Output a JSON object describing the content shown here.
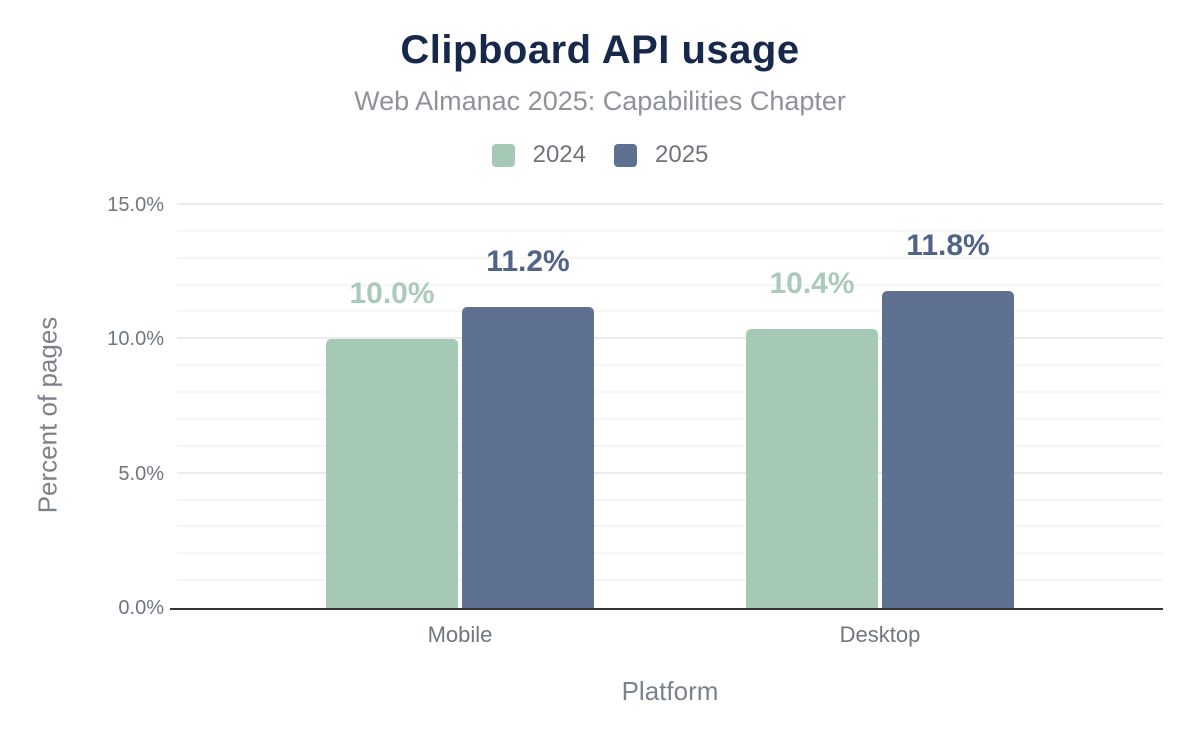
{
  "palette": {
    "background": "#ffffff",
    "title-color": "#16294b",
    "subtitle-color": "#8d9399",
    "legend-text": "#6f747c",
    "tick-text": "#70767e",
    "axis-title-text": "#7c828a",
    "grid-minor": "#f6f6f6",
    "grid-major": "#ebebeb",
    "baseline-color": "#323437"
  },
  "chart_data": {
    "type": "bar",
    "title": "Clipboard API usage",
    "subtitle": "Web Almanac 2025: Capabilities Chapter",
    "categories": [
      "Mobile",
      "Desktop"
    ],
    "series": [
      {
        "name": "2024",
        "values": [
          10.0,
          10.4
        ],
        "value_labels": [
          "10.0%",
          "10.4%"
        ],
        "color": "#a6c9b6",
        "value_label_color": "#aacbba"
      },
      {
        "name": "2025",
        "values": [
          11.2,
          11.8
        ],
        "value_labels": [
          "11.2%",
          "11.8%"
        ],
        "color": "#5e7190",
        "value_label_color": "#52638a"
      }
    ],
    "xlabel": "Platform",
    "ylabel": "Percent of pages",
    "ylim": [
      0,
      15
    ],
    "yticks": [
      {
        "value": 0,
        "label": "0.0%"
      },
      {
        "value": 5,
        "label": "5.0%"
      },
      {
        "value": 10,
        "label": "10.0%"
      },
      {
        "value": 15,
        "label": "15.0%"
      }
    ],
    "minor_grid_step": 1,
    "grid": true,
    "legend_position": "top"
  }
}
